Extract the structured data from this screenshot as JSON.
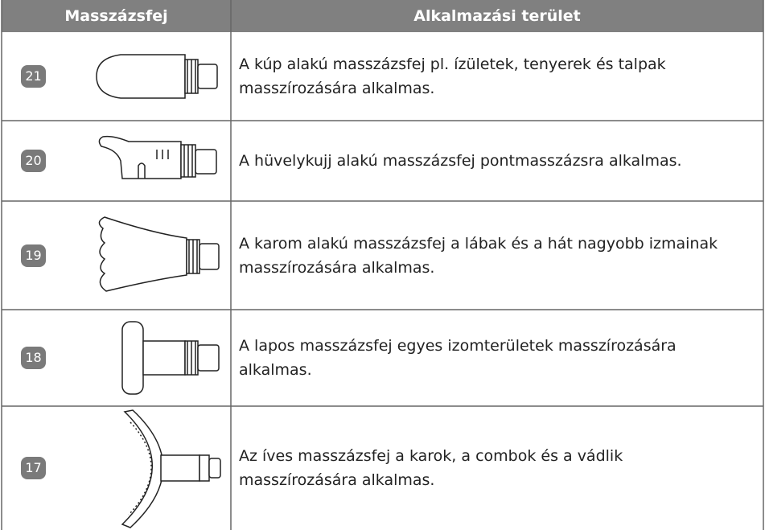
{
  "table": {
    "header": [
      "Masszázsfej",
      "Alkalmazási terület"
    ],
    "rows": [
      {
        "number": "21",
        "description": "A kúp alakú masszázsfej pl. ízületek, tenyerek és talpak masszírozására alkalmas."
      },
      {
        "number": "20",
        "description": "A hüvelykujj alakú masszázsfej pontmasszázsra alkalmas."
      },
      {
        "number": "19",
        "description": "A karom alakú masszázsfej a lábak és a hát nagyobb izmainak masszírozására alkalmas."
      },
      {
        "number": "18",
        "description": "A lapos masszázsfej egyes izomterületek masszírozására alkalmas."
      },
      {
        "number": "17",
        "description": "Az íves masszázsfej a karok, a combok és a vádlik masszírozására alkalmas."
      }
    ]
  }
}
